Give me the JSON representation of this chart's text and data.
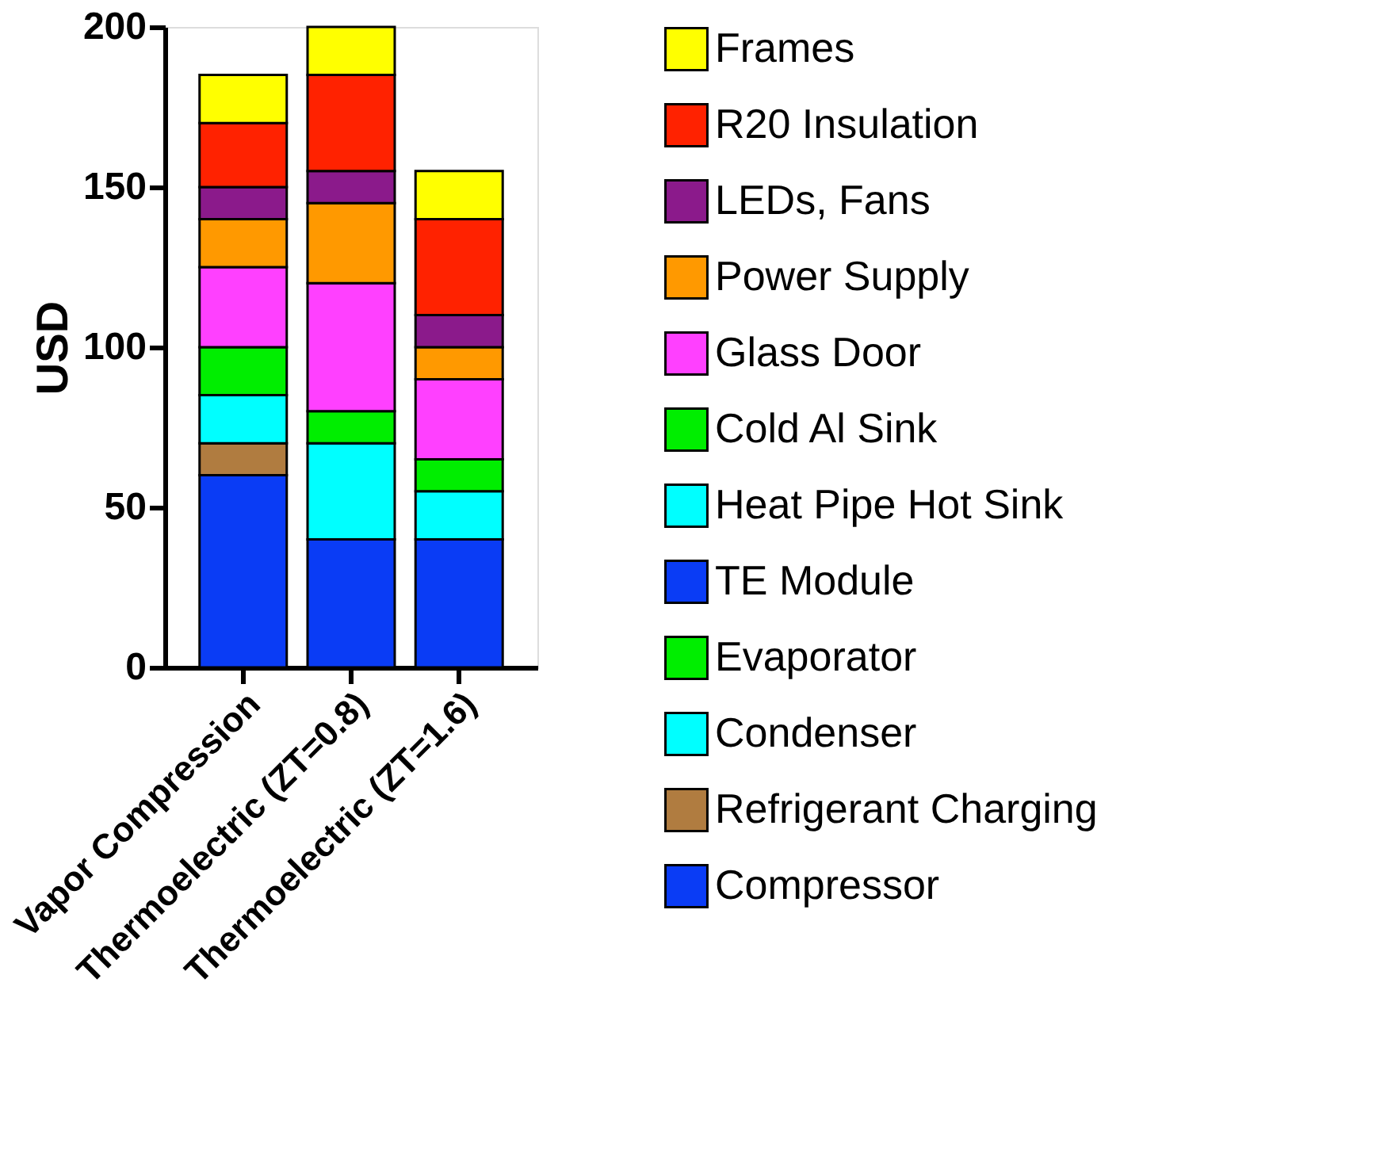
{
  "chart_data": {
    "type": "bar",
    "stacked": true,
    "ylabel": "USD",
    "categories": [
      "Vapor Compression",
      "Thermoelectric (ZT=0.8)",
      "Thermoelectric (ZT=1.6)"
    ],
    "ylim": [
      0,
      200
    ],
    "yticks": [
      0,
      50,
      100,
      150,
      200
    ],
    "grid": false,
    "legend": "right",
    "series": [
      {
        "name": "Compressor",
        "color": "#0a3cf5",
        "values": [
          60,
          null,
          null
        ]
      },
      {
        "name": "Refrigerant Charging",
        "color": "#b07c40",
        "values": [
          10,
          null,
          null
        ]
      },
      {
        "name": "Condenser",
        "color": "#00ffff",
        "values": [
          15,
          null,
          null
        ]
      },
      {
        "name": "Evaporator",
        "color": "#00ee00",
        "values": [
          15,
          null,
          null
        ]
      },
      {
        "name": "TE Module",
        "color": "#0a3cf5",
        "values": [
          null,
          40,
          40
        ]
      },
      {
        "name": "Heat Pipe Hot Sink",
        "color": "#00ffff",
        "values": [
          null,
          30,
          15
        ]
      },
      {
        "name": "Cold Al Sink",
        "color": "#00ee00",
        "values": [
          null,
          10,
          10
        ]
      },
      {
        "name": "Glass Door",
        "color": "#ff40ff",
        "values": [
          25,
          40,
          25
        ]
      },
      {
        "name": "Power Supply",
        "color": "#ff9900",
        "values": [
          15,
          25,
          10
        ]
      },
      {
        "name": "LEDs, Fans",
        "color": "#8b1a8b",
        "values": [
          10,
          10,
          10
        ]
      },
      {
        "name": "R20 Insulation",
        "color": "#ff2200",
        "values": [
          20,
          30,
          30
        ]
      },
      {
        "name": "Frames",
        "color": "#ffff00",
        "values": [
          15,
          15,
          15
        ]
      }
    ]
  }
}
